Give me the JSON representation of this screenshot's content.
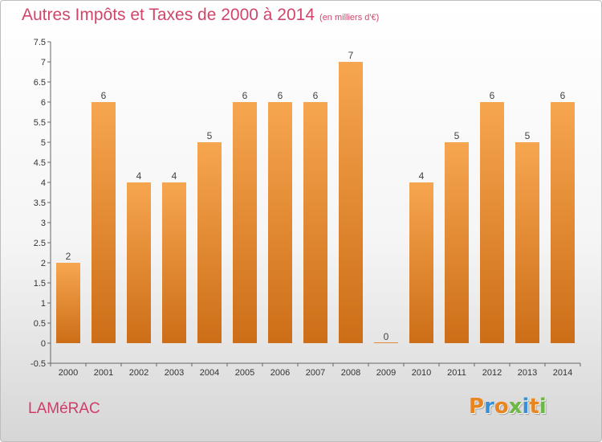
{
  "title": "Autres Impôts et Taxes de 2000 à 2014",
  "subtitle": "(en milliers d'€)",
  "commune": "LAMéRAC",
  "logo": {
    "text": "Proxiti",
    "colors": [
      "#e8851f",
      "#3a8fd6",
      "#e8851f",
      "#6bb843",
      "#3a8fd6",
      "#e8851f",
      "#6bb843"
    ]
  },
  "colors": {
    "bar_top": "#f7a650",
    "bar_bottom": "#cc6e17",
    "accent": "#d2456a"
  },
  "chart_data": {
    "type": "bar",
    "categories": [
      "2000",
      "2001",
      "2002",
      "2003",
      "2004",
      "2005",
      "2006",
      "2007",
      "2008",
      "2009",
      "2010",
      "2011",
      "2012",
      "2013",
      "2014"
    ],
    "values": [
      2,
      6,
      4,
      4,
      5,
      6,
      6,
      6,
      7,
      0,
      4,
      5,
      6,
      5,
      6
    ],
    "data_labels": [
      "2",
      "6",
      "4",
      "4",
      "5",
      "6",
      "6",
      "6",
      "7",
      "0",
      "4",
      "5",
      "6",
      "5",
      "6"
    ],
    "yticks": [
      "7.5",
      "7",
      "6.5",
      "6",
      "5.5",
      "5",
      "4.5",
      "4",
      "3.5",
      "3",
      "2.5",
      "2",
      "1.5",
      "1",
      "0.5",
      "0",
      "-0.5"
    ],
    "ylim": [
      -0.5,
      7.5
    ],
    "grid": false,
    "legend": "none"
  }
}
